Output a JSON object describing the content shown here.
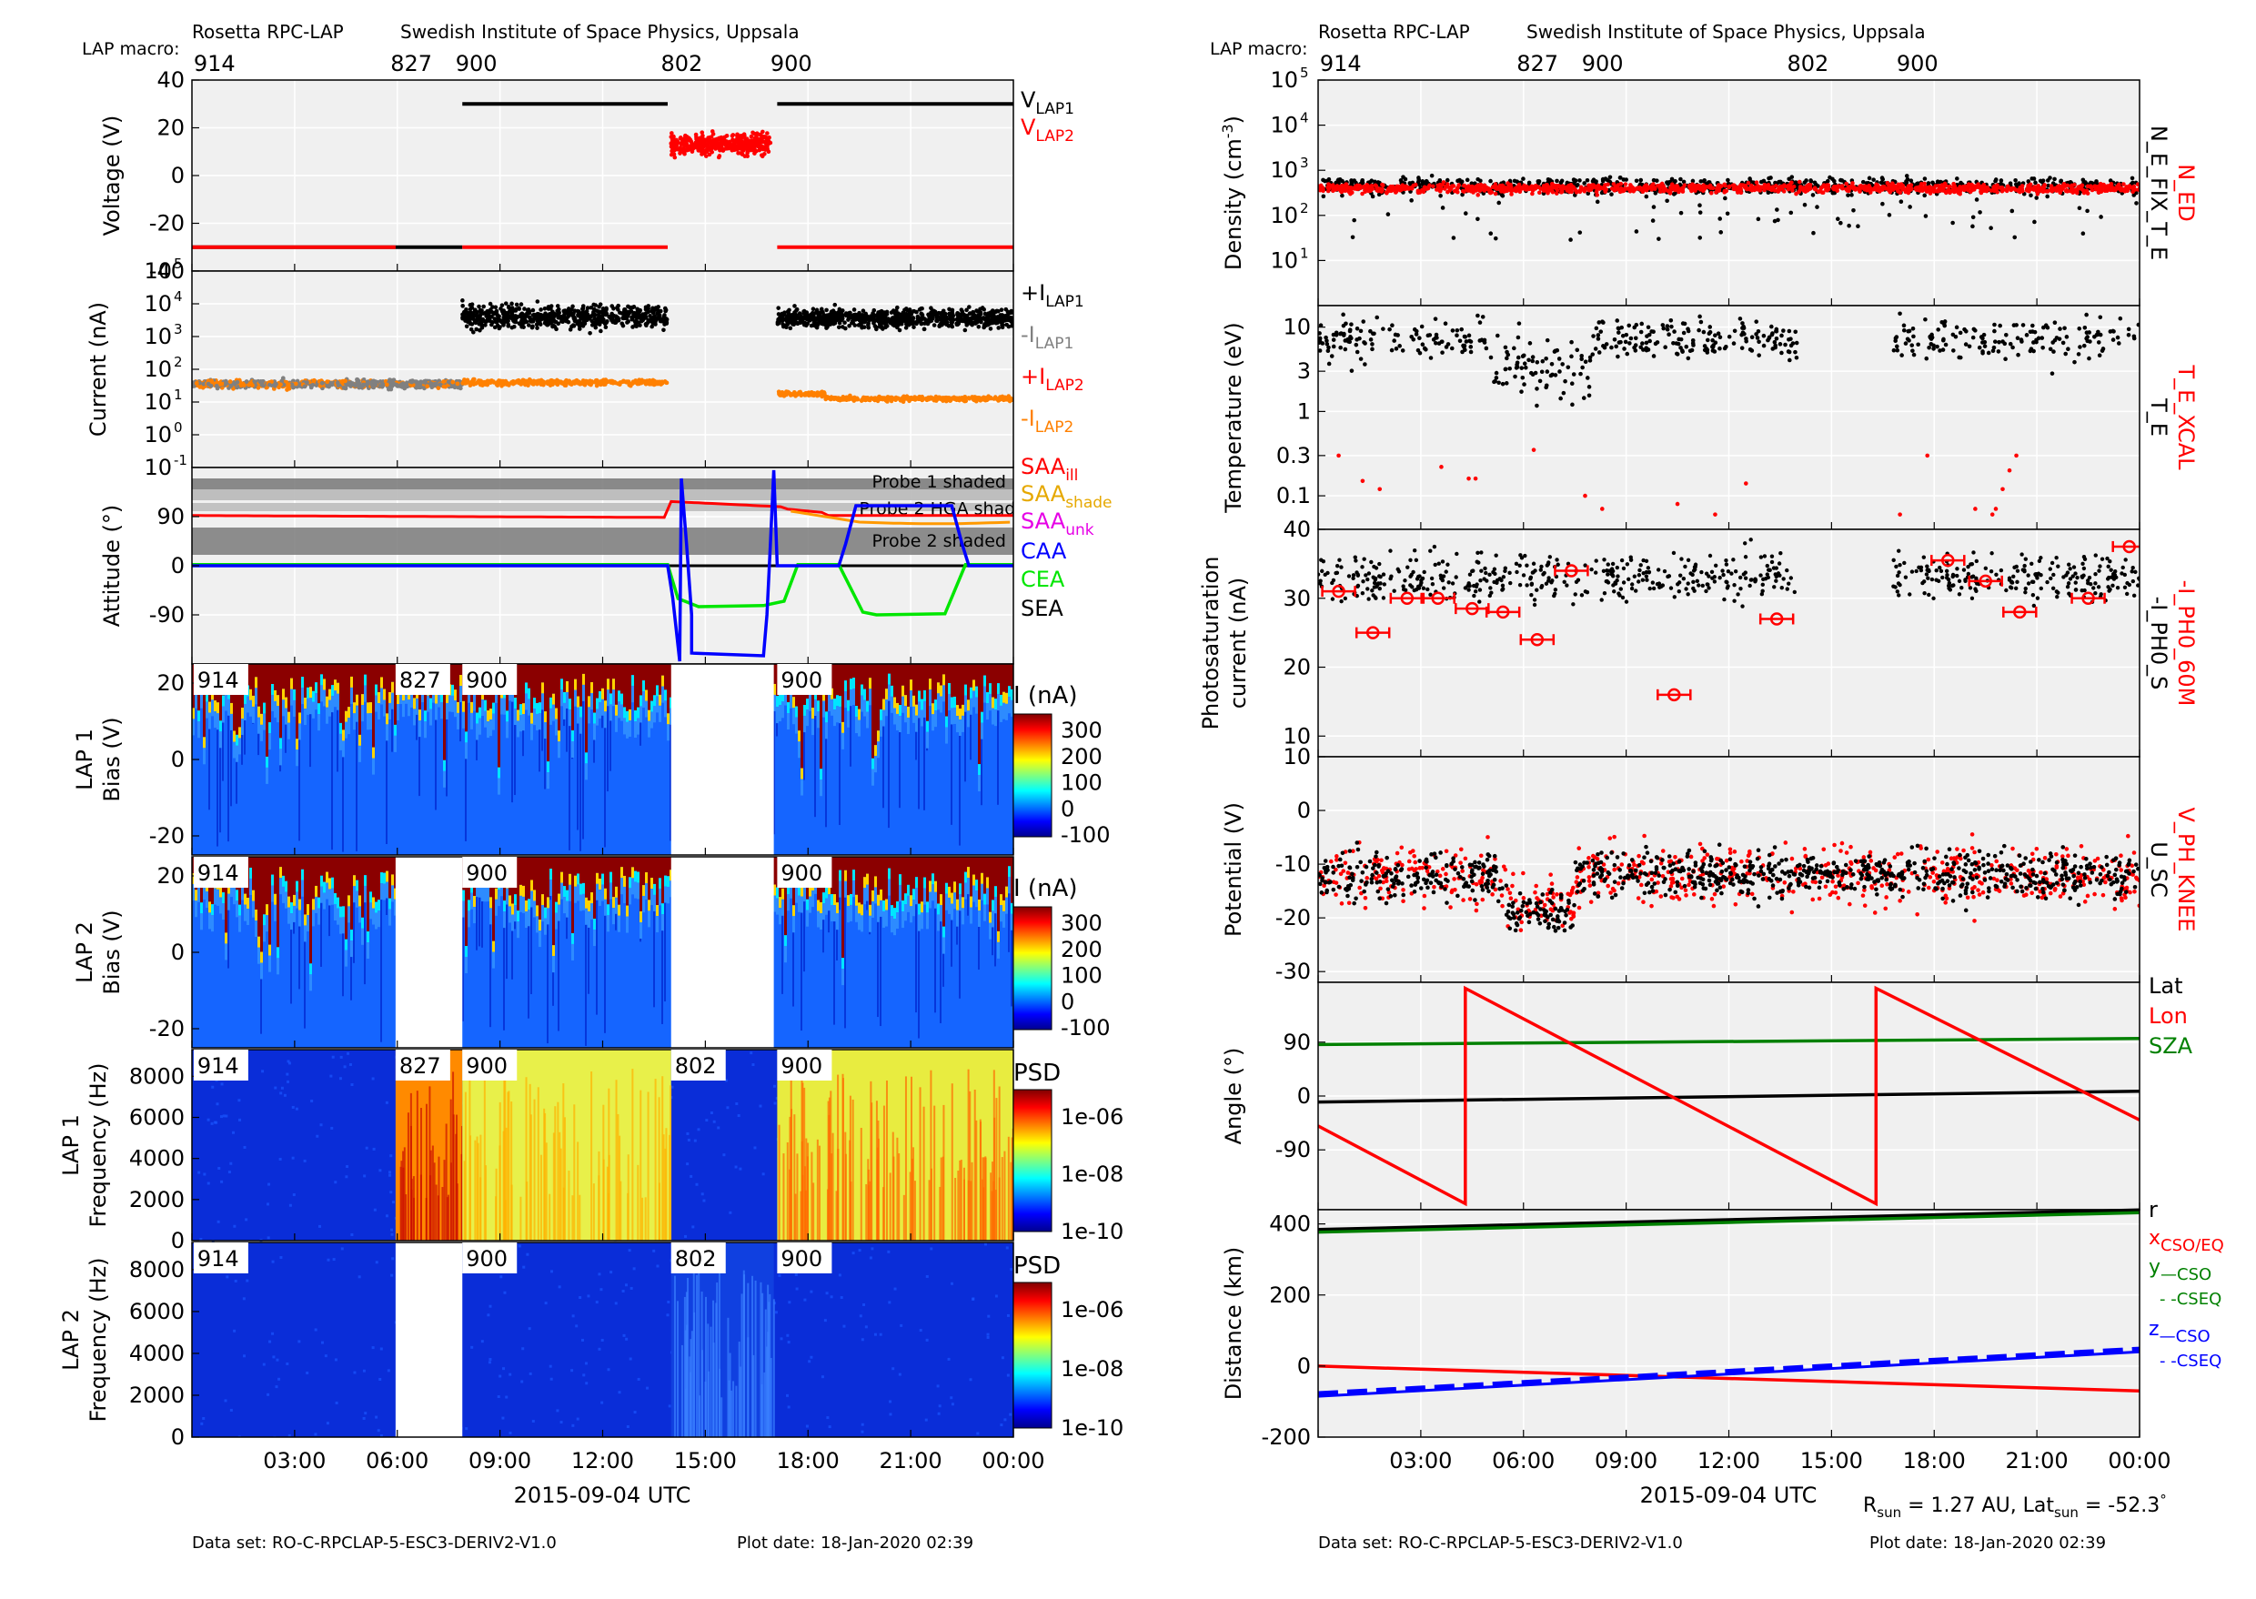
{
  "header": {
    "instrument": "Rosetta RPC-LAP",
    "institute": "Swedish Institute of Space Physics, Uppsala",
    "macro_label": "LAP macro:",
    "macros": [
      "914",
      "827",
      "900",
      "802",
      "900"
    ]
  },
  "footer": {
    "dataset": "Data set: RO-C-RPCLAP-5-ESC3-DERIV2-V1.0",
    "plot_date": "Plot date: 18-Jan-2020 02:39",
    "xlabel": "2015-09-04 UTC",
    "rsun_text": "R",
    "rsun_sub": "sun",
    "rsun_value": " = 1.27 AU, Lat",
    "lat_sub": "sun",
    "lat_value": " = -52.3",
    "deg": "°"
  },
  "time_ticks": [
    "03:00",
    "06:00",
    "09:00",
    "12:00",
    "15:00",
    "18:00",
    "21:00",
    "00:00"
  ],
  "colors": {
    "black": "#000000",
    "red": "#ff0000",
    "gray": "#808080",
    "orange": "#ff8000",
    "gold": "#e6a800",
    "magenta": "#e600e6",
    "blue": "#0000ff",
    "green": "#00e600",
    "dkgreen": "#008000",
    "bg": "#f0f0f0"
  },
  "colorbars": {
    "current_label": "I (nA)",
    "current_ticks": [
      "300",
      "200",
      "100",
      "0",
      "-100"
    ],
    "psd_label": "PSD",
    "psd_ticks": [
      "1e-06",
      "1e-08",
      "1e-10"
    ]
  },
  "chart_data": [
    {
      "type": "line",
      "panel": "voltage",
      "ylabel": "Voltage (V)",
      "yticks": [
        "40",
        "20",
        "0",
        "-20",
        "-40"
      ],
      "ylim": [
        -40,
        40
      ],
      "legend": [
        {
          "main": "V",
          "sub": "LAP1",
          "color": "#000000"
        },
        {
          "main": "V",
          "sub": "LAP2",
          "color": "#ff0000"
        }
      ],
      "series": [
        {
          "name": "VLAP1",
          "segments": [
            {
              "x": [
                0,
                5.95
              ],
              "y": [
                -30,
                -30
              ]
            },
            {
              "x": [
                5.95,
                7.9
              ],
              "y": [
                -30,
                -30
              ]
            },
            {
              "x": [
                7.9,
                13.9
              ],
              "y": [
                30,
                30
              ]
            },
            {
              "x": [
                17.1,
                24
              ],
              "y": [
                30,
                30
              ]
            }
          ]
        },
        {
          "name": "VLAP2",
          "segments": [
            {
              "x": [
                0,
                5.95
              ],
              "y": [
                -30,
                -30
              ]
            },
            {
              "x": [
                7.9,
                13.9
              ],
              "y": [
                -30,
                -30
              ]
            },
            {
              "x": [
                17.1,
                24
              ],
              "y": [
                -30,
                -30
              ]
            }
          ],
          "scatter_range": {
            "x": [
              14.0,
              16.9
            ],
            "y": [
              5,
              22
            ]
          }
        }
      ]
    },
    {
      "type": "scatter",
      "panel": "current",
      "ylabel": "Current (nA)",
      "yticks": [
        "10",
        "10",
        "10",
        "10",
        "10",
        "10",
        "10"
      ],
      "yexp": [
        "5",
        "4",
        "3",
        "2",
        "1",
        "0",
        "-1"
      ],
      "yscale": "log",
      "ylim": [
        0.1,
        100000
      ],
      "legend": [
        {
          "main": "+I",
          "sub": "LAP1",
          "color": "#000000"
        },
        {
          "main": "-I",
          "sub": "LAP1",
          "color": "#808080"
        },
        {
          "main": "+I",
          "sub": "LAP2",
          "color": "#ff0000"
        },
        {
          "main": "-I",
          "sub": "LAP2",
          "color": "#ff8000"
        }
      ]
    },
    {
      "type": "line",
      "panel": "attitude",
      "ylabel": "Attitude (°)",
      "yticks": [
        "90",
        "0",
        "-90"
      ],
      "ylim": [
        -180,
        180
      ],
      "shade_labels": [
        "Probe 1 shaded",
        "Probe 2 HGA shade",
        "Probe 2 shaded"
      ],
      "legend": [
        {
          "main": "SAA",
          "sub": "ill",
          "color": "#ff0000"
        },
        {
          "main": "SAA",
          "sub": "shade",
          "color": "#e6a800"
        },
        {
          "main": "SAA",
          "sub": "unk",
          "color": "#e600e6"
        },
        {
          "main": "CAA",
          "sub": "",
          "color": "#0000ff"
        },
        {
          "main": "CEA",
          "sub": "",
          "color": "#00e600"
        },
        {
          "main": "SEA",
          "sub": "",
          "color": "#000000"
        }
      ]
    },
    {
      "type": "heatmap",
      "panel": "lap1_bias",
      "ylabel": "LAP 1",
      "ylabel2": "Bias (V)",
      "yticks": [
        "20",
        "0",
        "-20"
      ],
      "ylim": [
        -25,
        25
      ],
      "macro_labels": [
        "914",
        "827",
        "900",
        "900"
      ],
      "clim": [
        -100,
        350
      ]
    },
    {
      "type": "heatmap",
      "panel": "lap2_bias",
      "ylabel": "LAP 2",
      "ylabel2": "Bias (V)",
      "yticks": [
        "20",
        "0",
        "-20"
      ],
      "ylim": [
        -25,
        25
      ],
      "macro_labels": [
        "914",
        "900",
        "900"
      ],
      "clim": [
        -100,
        350
      ]
    },
    {
      "type": "heatmap",
      "panel": "lap1_freq",
      "ylabel": "LAP 1",
      "ylabel2": "Frequency (Hz)",
      "yticks": [
        "8000",
        "6000",
        "4000",
        "2000",
        "0"
      ],
      "ylim": [
        0,
        9300
      ],
      "macro_labels": [
        "914",
        "827",
        "900",
        "802",
        "900"
      ]
    },
    {
      "type": "heatmap",
      "panel": "lap2_freq",
      "ylabel": "LAP 2",
      "ylabel2": "Frequency (Hz)",
      "yticks": [
        "8000",
        "6000",
        "4000",
        "2000",
        "0"
      ],
      "ylim": [
        0,
        9300
      ],
      "macro_labels": [
        "914",
        "900",
        "802",
        "900"
      ]
    },
    {
      "type": "scatter",
      "panel": "density",
      "ylabel": "Density (cm",
      "ylabel_sup": "-3",
      "ylabel_end": ")",
      "yticks": [
        "10",
        "10",
        "10",
        "10",
        "10"
      ],
      "yexp": [
        "5",
        "4",
        "3",
        "2",
        "1"
      ],
      "yscale": "log",
      "ylim": [
        1,
        100000
      ],
      "right_labels": [
        {
          "text": "N_ED",
          "color": "#ff0000"
        },
        {
          "text": "N_E_FIX_T_E",
          "color": "#000000"
        }
      ]
    },
    {
      "type": "scatter",
      "panel": "temperature",
      "ylabel": "Temperature (eV)",
      "yticks": [
        "10",
        "3",
        "1",
        "0.3",
        "0.1"
      ],
      "yscale": "log",
      "ylim": [
        0.04,
        18
      ],
      "right_labels": [
        {
          "text": "T_E_XCAL",
          "color": "#ff0000"
        },
        {
          "text": "T_E",
          "color": "#000000"
        }
      ]
    },
    {
      "type": "scatter",
      "panel": "photosat",
      "ylabel": "Photosaturation",
      "ylabel2": "current (nA)",
      "yticks": [
        "40",
        "30",
        "20",
        "10"
      ],
      "ylim": [
        7,
        40
      ],
      "right_labels": [
        {
          "text": "-I_PH0_60M",
          "color": "#ff0000"
        },
        {
          "text": "-I_PH0_S",
          "color": "#000000"
        }
      ],
      "errorbar_points": {
        "x": [
          0.6,
          1.6,
          2.6,
          3.5,
          4.5,
          5.4,
          6.4,
          7.4,
          10.4,
          13.4,
          18.4,
          19.5,
          20.5,
          22.5,
          23.7
        ],
        "y": [
          31,
          25,
          30,
          30,
          28.5,
          28,
          24,
          34,
          16,
          27,
          35.5,
          32.5,
          28,
          30,
          37.5
        ]
      }
    },
    {
      "type": "scatter",
      "panel": "potential",
      "ylabel": "Potential (V)",
      "yticks": [
        "10",
        "0",
        "-10",
        "-20",
        "-30"
      ],
      "ylim": [
        -32,
        10
      ],
      "right_labels": [
        {
          "text": "V_PH_KNEE",
          "color": "#ff0000"
        },
        {
          "text": "U_SC",
          "color": "#000000"
        }
      ]
    },
    {
      "type": "line",
      "panel": "angle",
      "ylabel": "Angle (°)",
      "yticks": [
        "90",
        "0",
        "-90"
      ],
      "ylim": [
        -190,
        190
      ],
      "legend": [
        {
          "main": "Lat",
          "color": "#000000"
        },
        {
          "main": "Lon",
          "color": "#ff0000"
        },
        {
          "main": "SZA",
          "color": "#008000"
        }
      ],
      "series": [
        {
          "name": "Lat",
          "x": [
            0,
            24
          ],
          "y": [
            -10,
            8
          ]
        },
        {
          "name": "SZA",
          "x": [
            0,
            24
          ],
          "y": [
            86,
            96
          ]
        },
        {
          "name": "Lon",
          "x": [
            0,
            4.3,
            4.3,
            16.3,
            16.3,
            24
          ],
          "y": [
            -50,
            -180,
            180,
            -180,
            180,
            -40
          ]
        }
      ]
    },
    {
      "type": "line",
      "panel": "distance",
      "ylabel": "Distance (km)",
      "yticks": [
        "400",
        "200",
        "0",
        "-200"
      ],
      "ylim": [
        -200,
        440
      ],
      "legend": [
        {
          "main": "r",
          "sub": "",
          "color": "#000000"
        },
        {
          "main": "x",
          "sub": "CSO/EQ",
          "color": "#ff0000"
        },
        {
          "main": "y",
          "sub": "—CSO",
          "color": "#008000"
        },
        {
          "main": "",
          "sub": "- -CSEQ",
          "color": "#008000"
        },
        {
          "main": "z",
          "sub": "—CSO",
          "color": "#0000ff"
        },
        {
          "main": "",
          "sub": "- -CSEQ",
          "color": "#0000ff"
        }
      ],
      "series": [
        {
          "name": "r",
          "x": [
            0,
            24
          ],
          "y": [
            385,
            440
          ]
        },
        {
          "name": "x",
          "x": [
            0,
            24
          ],
          "y": [
            0,
            -70
          ]
        },
        {
          "name": "y",
          "x": [
            0,
            24
          ],
          "y": [
            380,
            435
          ]
        },
        {
          "name": "z",
          "x": [
            0,
            24
          ],
          "y": [
            -85,
            40
          ]
        }
      ]
    }
  ]
}
